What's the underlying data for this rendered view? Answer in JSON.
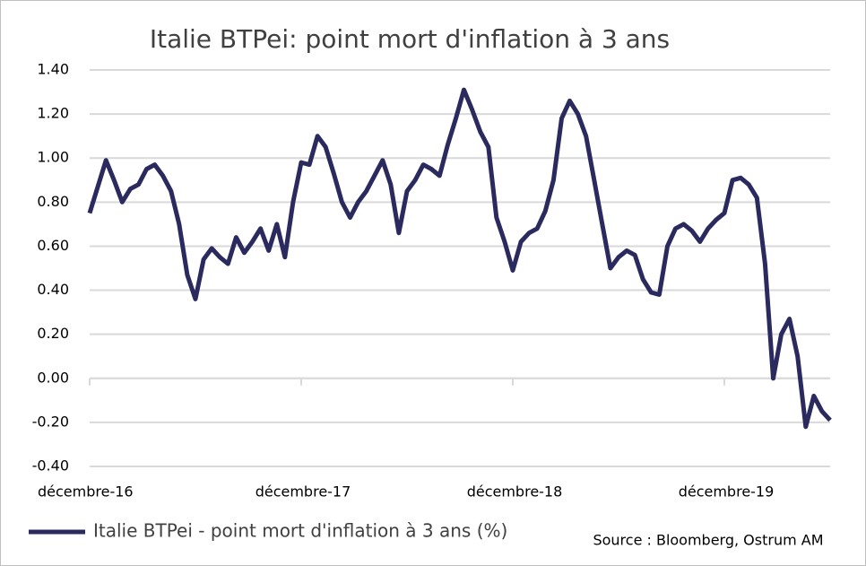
{
  "chart_data": {
    "type": "line",
    "title": "Italie BTPei: point mort d'inflation à 3 ans",
    "source": "Source : Bloomberg, Ostrum AM",
    "categories": [
      "décembre-16",
      null,
      null,
      null,
      null,
      null,
      null,
      null,
      null,
      null,
      null,
      null,
      null,
      null,
      null,
      null,
      null,
      null,
      null,
      null,
      null,
      null,
      null,
      null,
      null,
      null,
      "décembre-17",
      null,
      null,
      null,
      null,
      null,
      null,
      null,
      null,
      null,
      null,
      null,
      null,
      null,
      null,
      null,
      null,
      null,
      null,
      null,
      null,
      null,
      null,
      null,
      null,
      null,
      "décembre-18",
      null,
      null,
      null,
      null,
      null,
      null,
      null,
      null,
      null,
      null,
      null,
      null,
      null,
      null,
      null,
      null,
      null,
      null,
      null,
      null,
      null,
      null,
      null,
      null,
      null,
      "décembre-19",
      null,
      null,
      null,
      null,
      null,
      null,
      null,
      null,
      null,
      null,
      null,
      null,
      null
    ],
    "series": [
      {
        "name": "Italie BTPei - point mort d'inflation à 3 ans (%)",
        "color": "#2b2a5e",
        "values": [
          0.75,
          0.87,
          0.99,
          0.9,
          0.8,
          0.86,
          0.88,
          0.95,
          0.97,
          0.92,
          0.85,
          0.7,
          0.47,
          0.36,
          0.54,
          0.59,
          0.55,
          0.52,
          0.64,
          0.57,
          0.62,
          0.68,
          0.58,
          0.7,
          0.55,
          0.8,
          0.98,
          0.97,
          1.1,
          1.05,
          0.93,
          0.8,
          0.73,
          0.8,
          0.85,
          0.92,
          0.99,
          0.88,
          0.66,
          0.85,
          0.9,
          0.97,
          0.95,
          0.92,
          1.06,
          1.18,
          1.31,
          1.22,
          1.12,
          1.05,
          0.73,
          0.62,
          0.49,
          0.62,
          0.66,
          0.68,
          0.76,
          0.9,
          1.18,
          1.26,
          1.2,
          1.1,
          0.9,
          0.7,
          0.5,
          0.55,
          0.58,
          0.56,
          0.45,
          0.39,
          0.38,
          0.6,
          0.68,
          0.7,
          0.67,
          0.62,
          0.68,
          0.72,
          0.75,
          0.9,
          0.91,
          0.88,
          0.82,
          0.52,
          0.0,
          0.2,
          0.27,
          0.1,
          -0.22,
          -0.08,
          -0.15,
          -0.19
        ]
      }
    ],
    "ylim": [
      -0.4,
      1.4
    ],
    "yticks": [
      {
        "value": -0.4,
        "label": "-0.40"
      },
      {
        "value": -0.2,
        "label": "-0.20"
      },
      {
        "value": 0,
        "label": "0.00"
      },
      {
        "value": 0.2,
        "label": "0.20"
      },
      {
        "value": 0.4,
        "label": "0.40"
      },
      {
        "value": 0.6,
        "label": "0.60"
      },
      {
        "value": 0.8,
        "label": "0.80"
      },
      {
        "value": 1.0,
        "label": "1.00"
      },
      {
        "value": 1.2,
        "label": "1.20"
      },
      {
        "value": 1.4,
        "label": "1.40"
      }
    ],
    "grid": true
  }
}
